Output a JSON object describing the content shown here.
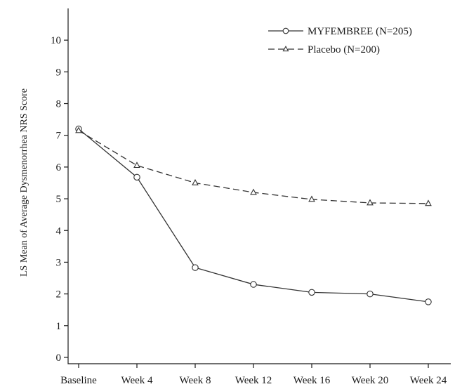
{
  "chart_data": {
    "type": "line",
    "title": "",
    "xlabel": "",
    "ylabel": "LS Mean of Average Dysmenorrhea NRS Score",
    "categories": [
      "Baseline",
      "Week 4",
      "Week 8",
      "Week 12",
      "Week 16",
      "Week 20",
      "Week 24"
    ],
    "yticks": [
      "0",
      "1",
      "2",
      "3",
      "4",
      "5",
      "6",
      "7",
      "8",
      "9",
      "10"
    ],
    "ylim": [
      -0.2,
      11.0
    ],
    "grid": false,
    "legend_position": "top-right",
    "series": [
      {
        "name": "MYFEMBREE (N=205)",
        "marker": "circle",
        "line_style": "solid",
        "color": "#333333",
        "values": [
          7.2,
          5.68,
          2.83,
          2.3,
          2.05,
          2.0,
          1.75
        ]
      },
      {
        "name": "Placebo (N=200)",
        "marker": "triangle",
        "line_style": "dashed",
        "color": "#333333",
        "values": [
          7.15,
          6.05,
          5.5,
          5.2,
          4.98,
          4.87,
          4.85
        ]
      }
    ]
  }
}
